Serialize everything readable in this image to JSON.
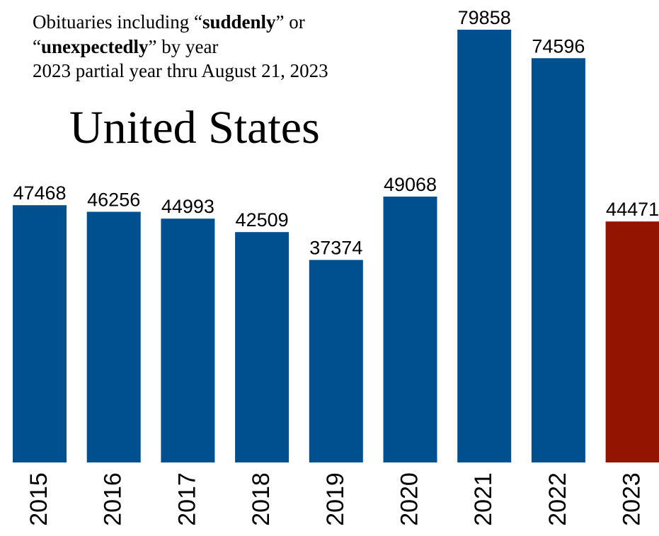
{
  "chart_data": {
    "type": "bar",
    "title": "United States",
    "subtitle": {
      "line1": {
        "before": "Obituaries including “",
        "bold": "suddenly",
        "after": "” or"
      },
      "line2": {
        "before": "“",
        "bold": "unexpectedly",
        "after": "” by year"
      },
      "line3": "2023 partial year thru August 21, 2023"
    },
    "categories": [
      "2015",
      "2016",
      "2017",
      "2018",
      "2019",
      "2020",
      "2021",
      "2022",
      "2023"
    ],
    "values": [
      47468,
      46256,
      44993,
      42509,
      37374,
      49068,
      79858,
      74596,
      44471
    ],
    "value_labels": [
      "47468",
      "46256",
      "44993",
      "42509",
      "37374",
      "49068",
      "79858",
      "74596",
      "44471"
    ],
    "ylim": [
      0,
      80000
    ],
    "xlabel": "",
    "ylabel": "",
    "grid": false,
    "legend": "none",
    "colors": {
      "full_year": "#00508f",
      "partial_year": "#931400"
    },
    "bar_color_keys": [
      "full_year",
      "full_year",
      "full_year",
      "full_year",
      "full_year",
      "full_year",
      "full_year",
      "full_year",
      "partial_year"
    ]
  }
}
